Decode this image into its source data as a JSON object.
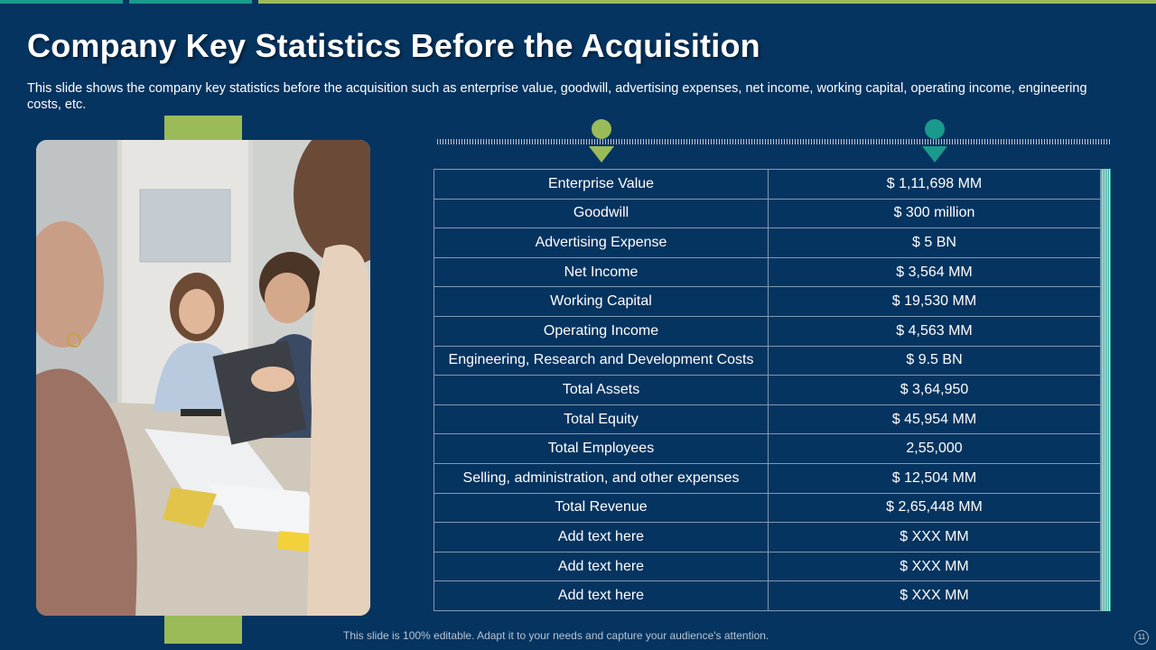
{
  "colors": {
    "background": "#063460",
    "accent_green": "#9bbb59",
    "accent_teal": "#1a9a8c",
    "table_border": "#7f9bb5"
  },
  "slide": {
    "title": "Company Key Statistics Before the Acquisition",
    "subtitle": "This slide shows the company key statistics before the acquisition such as enterprise value, goodwill, advertising expenses, net income, working capital, operating income, engineering costs, etc."
  },
  "photo": {
    "icon": "meeting-photo"
  },
  "markers": {
    "left_icon": "map-pin-icon",
    "right_icon": "map-pin-icon"
  },
  "table": {
    "rows": [
      {
        "label": "Enterprise Value",
        "value": "$ 1,11,698 MM"
      },
      {
        "label": "Goodwill",
        "value": "$ 300 million"
      },
      {
        "label": "Advertising Expense",
        "value": "$ 5 BN"
      },
      {
        "label": "Net Income",
        "value": "$ 3,564 MM"
      },
      {
        "label": "Working Capital",
        "value": "$ 19,530 MM"
      },
      {
        "label": "Operating Income",
        "value": "$ 4,563 MM"
      },
      {
        "label": "Engineering, Research and Development Costs",
        "value": "$ 9.5 BN"
      },
      {
        "label": "Total Assets",
        "value": "$ 3,64,950"
      },
      {
        "label": "Total Equity",
        "value": "$ 45,954 MM"
      },
      {
        "label": "Total Employees",
        "value": "2,55,000"
      },
      {
        "label": "Selling, administration, and other expenses",
        "value": "$ 12,504 MM"
      },
      {
        "label": "Total Revenue",
        "value": "$ 2,65,448 MM"
      },
      {
        "label": "Add text here",
        "value": "$ XXX MM"
      },
      {
        "label": "Add text here",
        "value": "$ XXX MM"
      },
      {
        "label": "Add text here",
        "value": "$ XXX MM"
      }
    ]
  },
  "footer": {
    "text": "This slide is 100% editable. Adapt it to your needs and capture your audience's attention.",
    "page_number": "11"
  }
}
